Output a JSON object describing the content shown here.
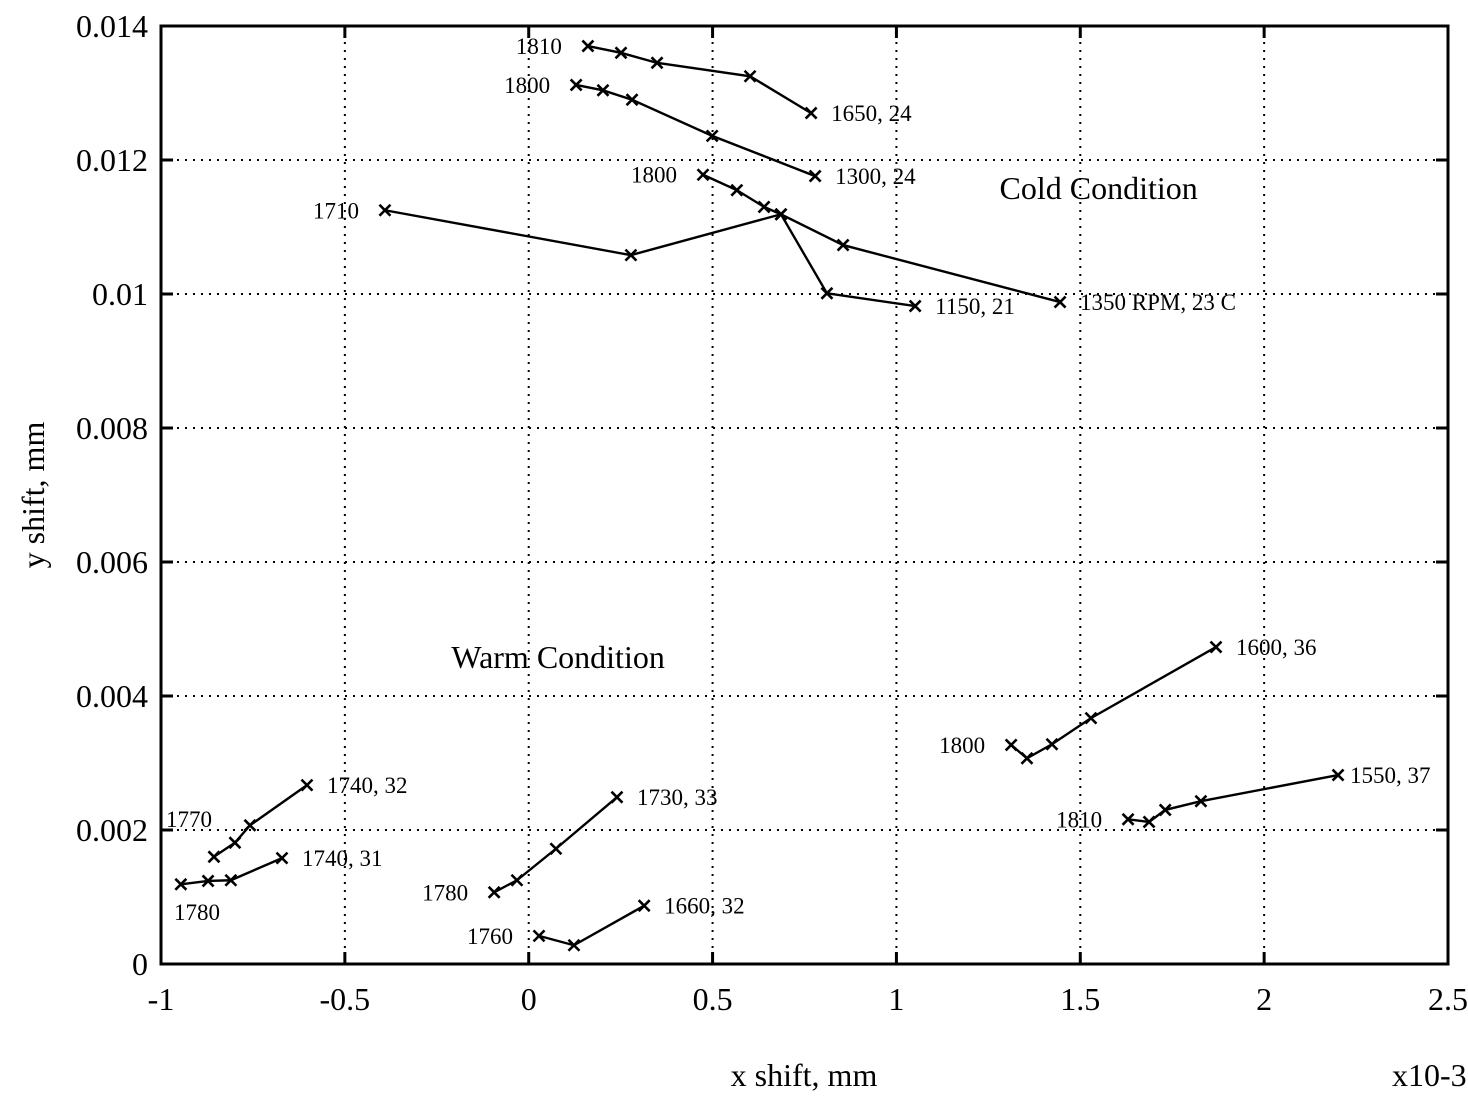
{
  "chart_data": {
    "type": "line",
    "title": "",
    "xlabel": "x shift, mm",
    "ylabel": "y shift, mm",
    "x_scale_note": "x10-3",
    "xlim": [
      -1,
      2.5
    ],
    "ylim": [
      0,
      0.014
    ],
    "x_ticks": [
      -1,
      -0.5,
      0,
      0.5,
      1,
      1.5,
      2,
      2.5
    ],
    "x_tick_labels": [
      "-1",
      "-0.5",
      "0",
      "0.5",
      "1",
      "1.5",
      "2",
      "2.5"
    ],
    "y_ticks": [
      0,
      0.002,
      0.004,
      0.006,
      0.008,
      0.01,
      0.012,
      0.014
    ],
    "y_tick_labels": [
      "0",
      "0.002",
      "0.004",
      "0.006",
      "0.008",
      "0.01",
      "0.012",
      "0.014"
    ],
    "grid": true,
    "marker": "x",
    "annotations": [
      {
        "text": "Cold Condition",
        "x": 1.55,
        "y": 0.0116
      },
      {
        "text": "Warm Condition",
        "x": 0.08,
        "y": 0.0046
      }
    ],
    "series": [
      {
        "name": "cold-1810-1650",
        "start_label": "1810",
        "end_label": "1650, 24",
        "x": [
          0.161,
          0.251,
          0.349,
          0.602,
          0.768
        ],
        "y": [
          0.0137,
          0.0136,
          0.01345,
          0.01325,
          0.0127
        ]
      },
      {
        "name": "cold-1800-1300",
        "start_label": "1800",
        "end_label": "1300, 24",
        "x": [
          0.129,
          0.202,
          0.281,
          0.499,
          0.779
        ],
        "y": [
          0.01312,
          0.01304,
          0.0129,
          0.01236,
          0.01176
        ]
      },
      {
        "name": "cold-1710-1350",
        "start_label": "1710",
        "end_label": "1350 RPM, 23 C",
        "x": [
          -0.391,
          0.278,
          0.686,
          0.855,
          1.445
        ],
        "y": [
          0.01125,
          0.01058,
          0.01119,
          0.01073,
          0.00988
        ]
      },
      {
        "name": "cold-1800-1150",
        "start_label": "1800",
        "end_label": "1150, 21",
        "x": [
          0.474,
          0.566,
          0.64,
          0.686,
          0.811,
          1.051
        ],
        "y": [
          0.01178,
          0.01155,
          0.0113,
          0.01119,
          0.01001,
          0.00982
        ]
      },
      {
        "name": "warm-1770-1740-32",
        "start_label": "1770",
        "end_label": "1740, 32",
        "x": [
          -0.856,
          -0.799,
          -0.758,
          -0.603
        ],
        "y": [
          0.0016,
          0.00181,
          0.00207,
          0.00267
        ]
      },
      {
        "name": "warm-1780-1740-31",
        "start_label": "1780",
        "end_label": "1740, 31",
        "x": [
          -0.946,
          -0.872,
          -0.81,
          -0.671
        ],
        "y": [
          0.00119,
          0.00124,
          0.00125,
          0.00158
        ]
      },
      {
        "name": "warm-1780-1730-33",
        "start_label": "1780",
        "end_label": "1730, 33",
        "x": [
          -0.094,
          -0.032,
          0.074,
          0.24
        ],
        "y": [
          0.00107,
          0.00125,
          0.00172,
          0.00249
        ]
      },
      {
        "name": "warm-1760-1660-32",
        "start_label": "1760",
        "end_label": "1660, 32",
        "x": [
          0.028,
          0.123,
          0.314
        ],
        "y": [
          0.00042,
          0.00028,
          0.00087
        ]
      },
      {
        "name": "warm-1800-1600-36",
        "start_label": "1800",
        "end_label": "1600, 36",
        "x": [
          1.312,
          1.355,
          1.423,
          1.529,
          1.869
        ],
        "y": [
          0.00327,
          0.00307,
          0.00328,
          0.00367,
          0.00473
        ]
      },
      {
        "name": "warm-1810-1550-37",
        "start_label": "1810",
        "end_label": "1550, 37",
        "x": [
          1.63,
          1.687,
          1.731,
          1.828,
          2.201
        ],
        "y": [
          0.00216,
          0.00212,
          0.0023,
          0.00243,
          0.00282
        ]
      }
    ]
  }
}
